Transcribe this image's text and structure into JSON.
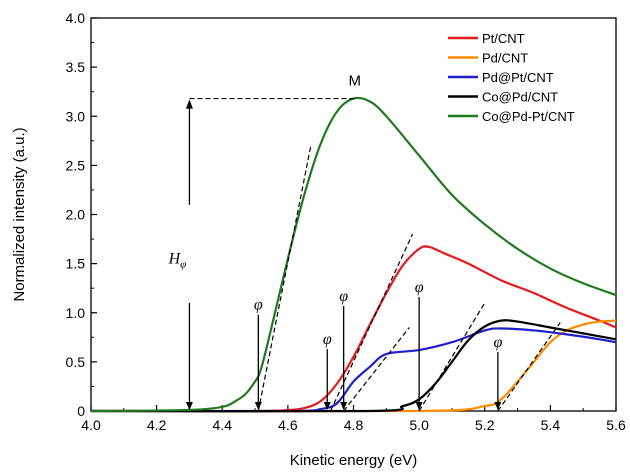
{
  "chart_data": {
    "type": "line",
    "xlabel": "Kinetic energy (eV)",
    "ylabel": "Normalized intensity (a.u.)",
    "xlim": [
      4.0,
      5.6
    ],
    "ylim": [
      0,
      4.0
    ],
    "xticks": [
      "4.0",
      "4.2",
      "4.4",
      "4.6",
      "4.8",
      "5.0",
      "5.2",
      "5.4",
      "5.6"
    ],
    "yticks": [
      "0",
      "0.5",
      "1.0",
      "1.5",
      "2.0",
      "2.5",
      "3.0",
      "3.5",
      "4.0"
    ],
    "legend_position": "top-right",
    "series": [
      {
        "name": "Pt/CNT",
        "color": "#e41a1c",
        "x": [
          4.0,
          4.5,
          4.6,
          4.65,
          4.7,
          4.75,
          4.8,
          4.85,
          4.9,
          4.95,
          5.0,
          5.03,
          5.08,
          5.15,
          5.25,
          5.35,
          5.45,
          5.55,
          5.6
        ],
        "y": [
          0,
          0,
          0.01,
          0.03,
          0.1,
          0.28,
          0.55,
          0.88,
          1.2,
          1.48,
          1.65,
          1.67,
          1.6,
          1.5,
          1.33,
          1.2,
          1.05,
          0.92,
          0.85
        ]
      },
      {
        "name": "Pd/CNT",
        "color": "#ff8c00",
        "x": [
          4.0,
          5.0,
          5.2,
          5.25,
          5.3,
          5.35,
          5.4,
          5.45,
          5.5,
          5.55,
          5.6
        ],
        "y": [
          0,
          0,
          0.05,
          0.12,
          0.3,
          0.5,
          0.7,
          0.82,
          0.88,
          0.91,
          0.92
        ]
      },
      {
        "name": "Pd@Pt/CNT",
        "color": "#1f1fcc",
        "x": [
          4.0,
          4.6,
          4.7,
          4.75,
          4.8,
          4.85,
          4.9,
          5.0,
          5.1,
          5.2,
          5.25,
          5.35,
          5.45,
          5.55,
          5.6
        ],
        "y": [
          0,
          0,
          0.02,
          0.08,
          0.3,
          0.45,
          0.58,
          0.62,
          0.7,
          0.82,
          0.84,
          0.82,
          0.78,
          0.73,
          0.7
        ]
      },
      {
        "name": "Co@Pd/CNT",
        "color": "#000000",
        "x": [
          4.0,
          4.85,
          4.95,
          5.0,
          5.05,
          5.1,
          5.15,
          5.2,
          5.25,
          5.3,
          5.4,
          5.5,
          5.6
        ],
        "y": [
          0,
          0,
          0.05,
          0.12,
          0.28,
          0.5,
          0.72,
          0.86,
          0.92,
          0.91,
          0.85,
          0.79,
          0.73
        ]
      },
      {
        "name": "Co@Pd-Pt/CNT",
        "color": "#1f7a1f",
        "x": [
          4.0,
          4.35,
          4.45,
          4.5,
          4.52,
          4.55,
          4.6,
          4.65,
          4.7,
          4.75,
          4.8,
          4.85,
          4.9,
          5.0,
          5.1,
          5.2,
          5.3,
          5.4,
          5.5,
          5.6
        ],
        "y": [
          0,
          0.02,
          0.12,
          0.3,
          0.45,
          0.85,
          1.55,
          2.2,
          2.72,
          3.05,
          3.18,
          3.15,
          3.0,
          2.6,
          2.2,
          1.9,
          1.65,
          1.45,
          1.3,
          1.18
        ]
      }
    ],
    "tangent_lines": [
      {
        "x": [
          4.51,
          4.67
        ],
        "y": [
          0,
          2.7
        ]
      },
      {
        "x": [
          4.73,
          4.98
        ],
        "y": [
          0,
          1.8
        ]
      },
      {
        "x": [
          4.77,
          4.97
        ],
        "y": [
          0,
          0.85
        ]
      },
      {
        "x": [
          5.0,
          5.2
        ],
        "y": [
          0,
          1.1
        ]
      },
      {
        "x": [
          5.24,
          5.43
        ],
        "y": [
          0,
          0.9
        ]
      }
    ],
    "annotations": {
      "phi_symbol": "φ",
      "phi_markers": [
        {
          "x": 4.51,
          "y_label": 0.98
        },
        {
          "x": 4.72,
          "y_label": 0.63
        },
        {
          "x": 4.77,
          "y_label": 1.07
        },
        {
          "x": 5.0,
          "y_label": 1.16
        },
        {
          "x": 5.24,
          "y_label": 0.6
        }
      ],
      "peak_label": "M",
      "peak_x": 4.81,
      "peak_y": 3.18,
      "height_label_main": "H",
      "height_label_sub": "φ",
      "height_arrow_x": 4.3
    }
  }
}
